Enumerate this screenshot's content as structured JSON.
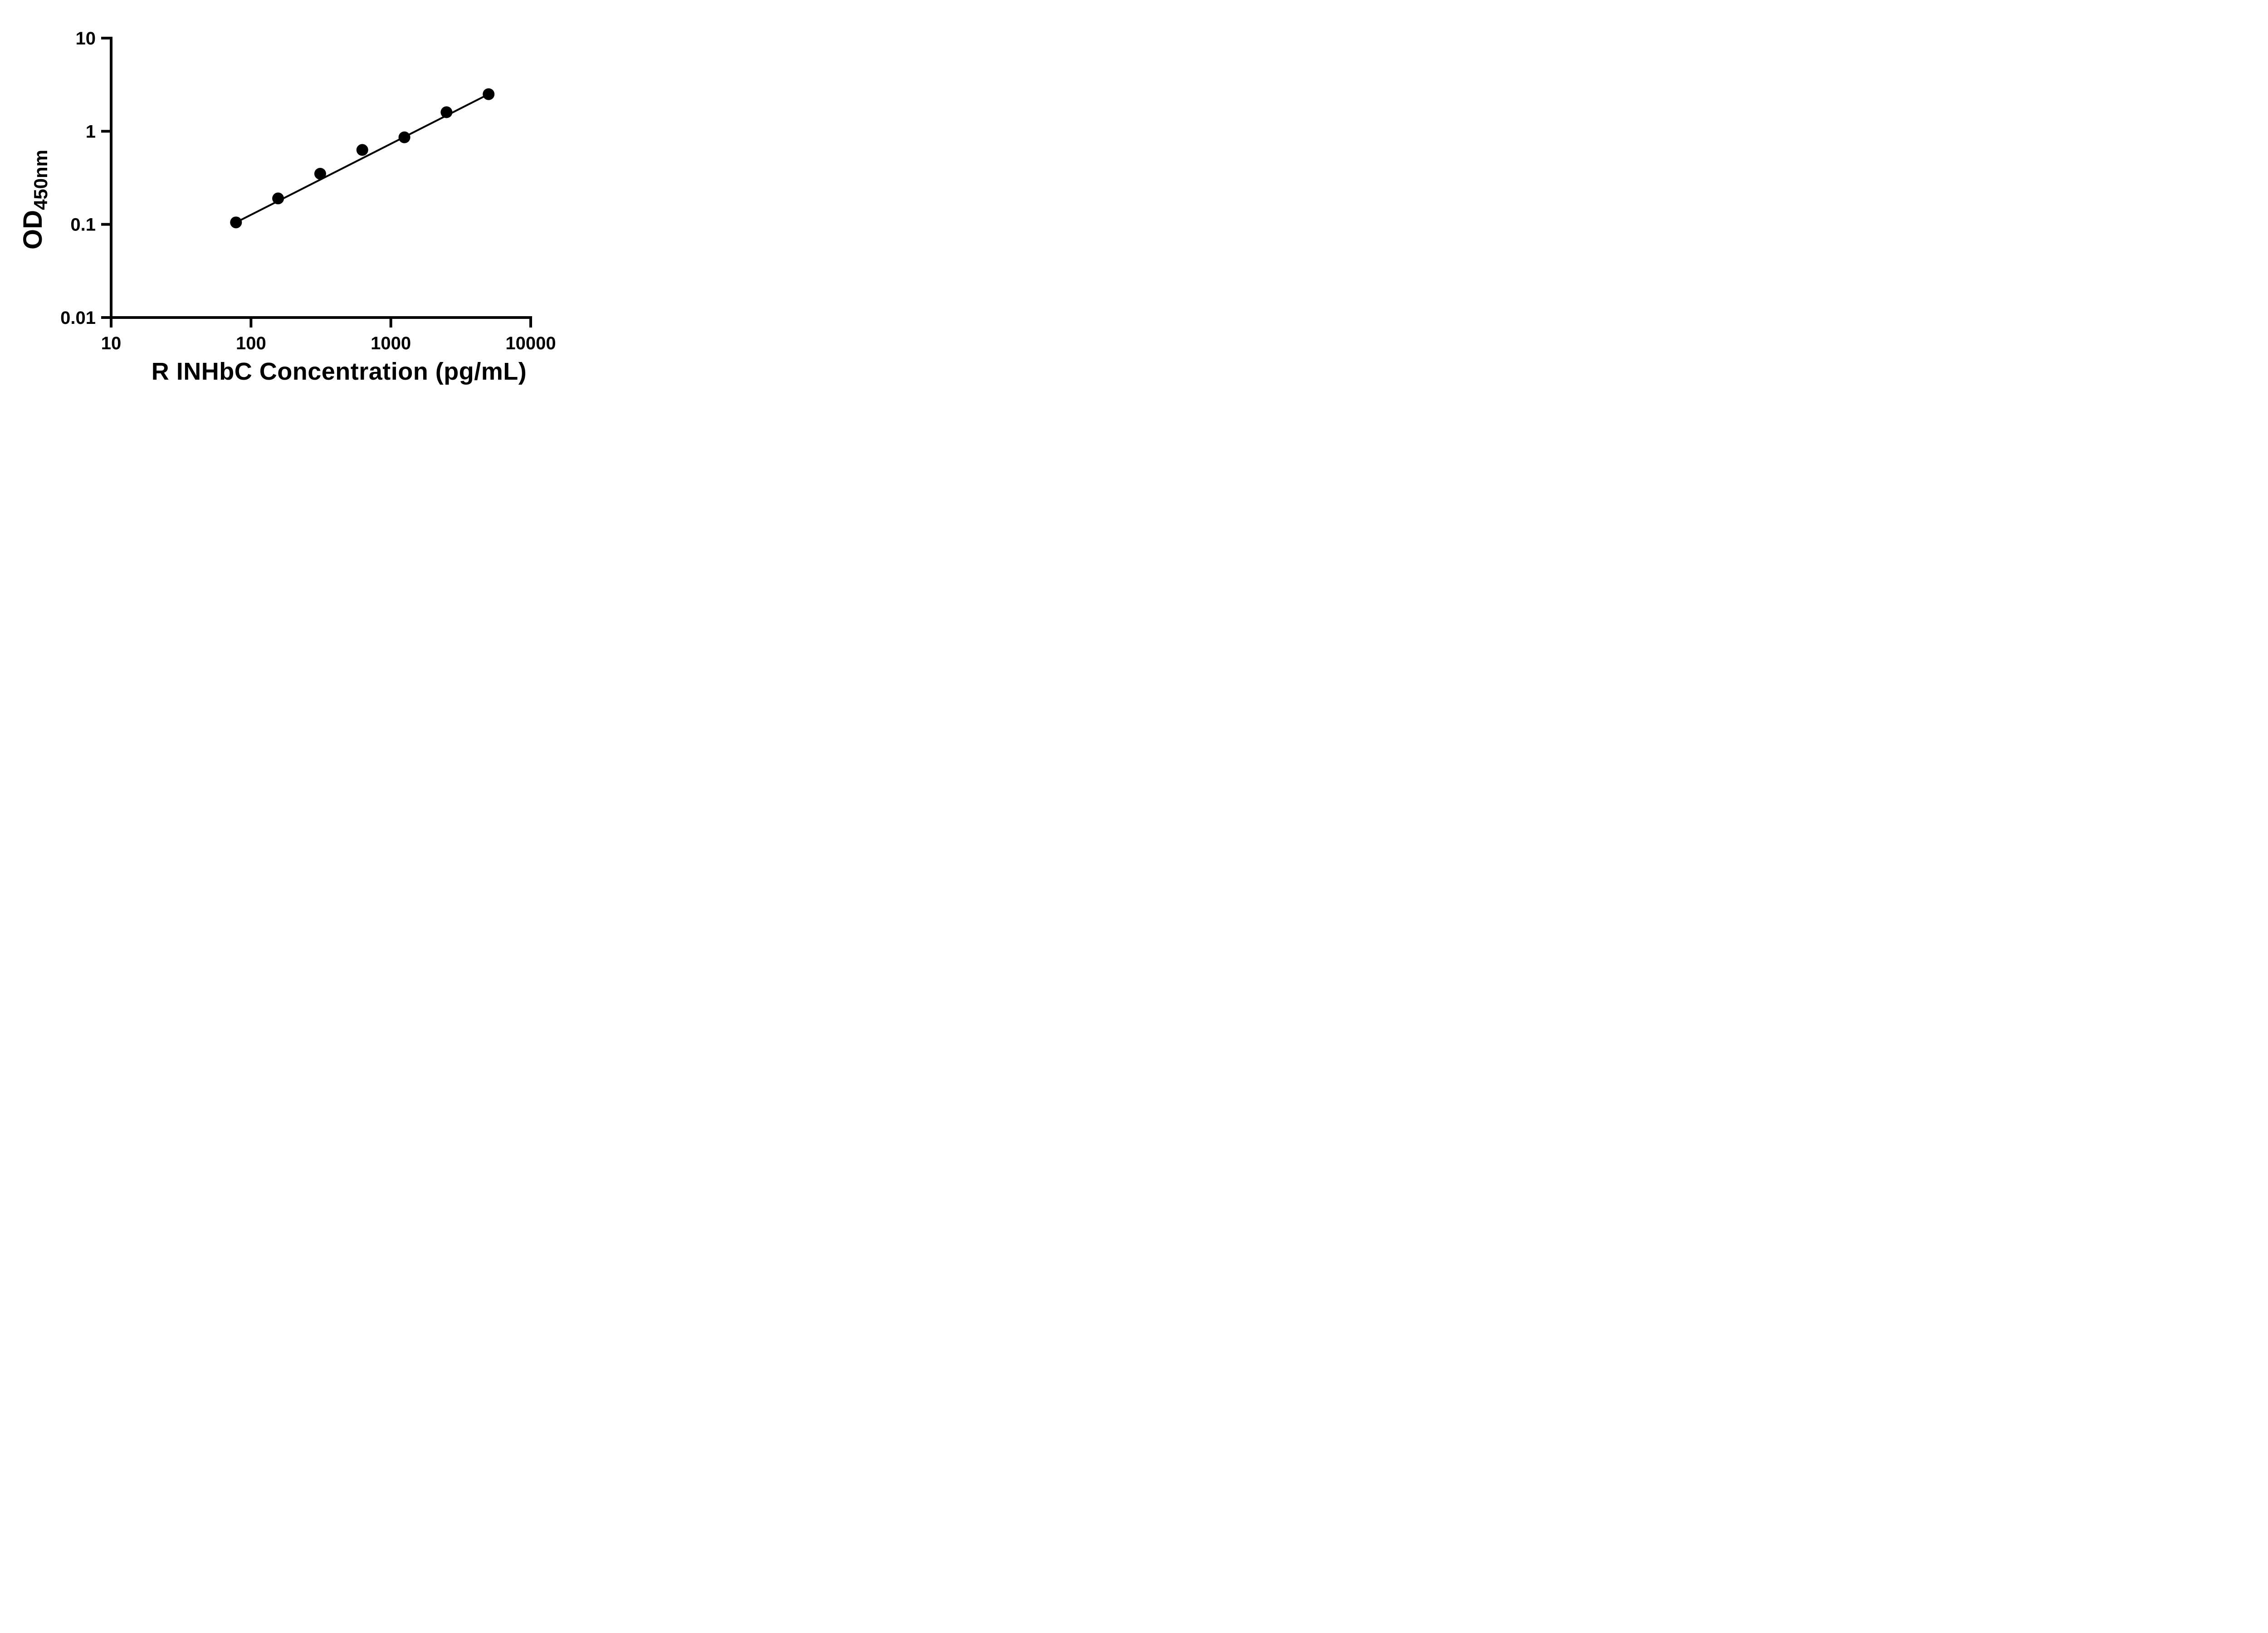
{
  "figure": {
    "background": "#ffffff"
  },
  "chart_data": {
    "type": "scatter",
    "xlabel": "R INHbC Concentration (pg/mL)",
    "ylabel": "OD450nm",
    "ylabel_base": "OD",
    "ylabel_sub": "450nm",
    "x_scale": "log10",
    "y_scale": "log10",
    "xlim": [
      10,
      10000
    ],
    "ylim": [
      0.01,
      10
    ],
    "x_ticks": [
      10,
      100,
      1000,
      10000
    ],
    "x_tick_labels": [
      "10",
      "100",
      "1000",
      "10000"
    ],
    "y_ticks": [
      0.01,
      0.1,
      1,
      10
    ],
    "y_tick_labels": [
      "0.01",
      "0.1",
      "1",
      "10"
    ],
    "x": [
      78.125,
      156.25,
      312.5,
      625,
      1250,
      2500,
      5000
    ],
    "y": [
      0.105,
      0.19,
      0.35,
      0.63,
      0.86,
      1.6,
      2.5
    ],
    "trend_line": {
      "x1": 78.125,
      "y1": 0.105,
      "x2": 5000,
      "y2": 2.5
    },
    "marker": {
      "shape": "circle",
      "color": "#000000",
      "radius_px": 13
    },
    "line_color": "#000000",
    "axis_color": "#000000",
    "grid": false,
    "legend": false
  }
}
